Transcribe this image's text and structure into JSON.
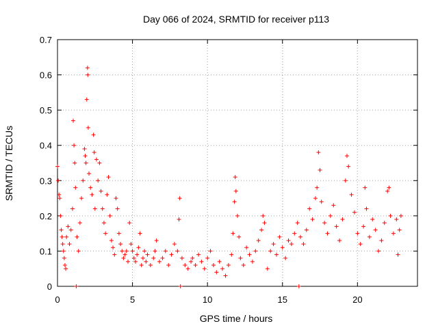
{
  "chart_data": {
    "type": "scatter",
    "title": "Day 066 of 2024, SRMTID for receiver p113",
    "xlabel": "GPS time / hours",
    "ylabel": "SRMTID / TECUs",
    "xlim": [
      0,
      24
    ],
    "ylim": [
      0,
      0.7
    ],
    "x_ticks": [
      0,
      5,
      10,
      15,
      20
    ],
    "y_ticks": [
      0,
      0.1,
      0.2,
      0.3,
      0.4,
      0.5,
      0.6,
      0.7
    ],
    "x_tick_labels": [
      "0",
      "5",
      "10",
      "15",
      "20"
    ],
    "y_tick_labels": [
      "0",
      "0.1",
      "0.2",
      "0.3",
      "0.4",
      "0.5",
      "0.6",
      "0.7"
    ],
    "grid": true,
    "marker": "+",
    "color": "#ff0000",
    "series": [
      {
        "name": "p113",
        "points": [
          [
            0.0,
            0.34
          ],
          [
            0.05,
            0.3
          ],
          [
            0.1,
            0.26
          ],
          [
            0.15,
            0.25
          ],
          [
            0.2,
            0.2
          ],
          [
            0.25,
            0.16
          ],
          [
            0.3,
            0.14
          ],
          [
            0.35,
            0.12
          ],
          [
            0.4,
            0.1
          ],
          [
            0.45,
            0.08
          ],
          [
            0.5,
            0.06
          ],
          [
            0.55,
            0.05
          ],
          [
            0.6,
            0.14
          ],
          [
            0.7,
            0.17
          ],
          [
            0.8,
            0.12
          ],
          [
            0.9,
            0.16
          ],
          [
            1.0,
            0.22
          ],
          [
            1.05,
            0.47
          ],
          [
            1.1,
            0.4
          ],
          [
            1.15,
            0.35
          ],
          [
            1.2,
            0.28
          ],
          [
            1.25,
            0.0
          ],
          [
            1.3,
            0.14
          ],
          [
            1.4,
            0.1
          ],
          [
            1.5,
            0.18
          ],
          [
            1.6,
            0.25
          ],
          [
            1.7,
            0.3
          ],
          [
            1.8,
            0.39
          ],
          [
            1.85,
            0.37
          ],
          [
            1.9,
            0.35
          ],
          [
            1.95,
            0.53
          ],
          [
            2.0,
            0.62
          ],
          [
            2.02,
            0.6
          ],
          [
            2.05,
            0.45
          ],
          [
            2.1,
            0.32
          ],
          [
            2.2,
            0.28
          ],
          [
            2.3,
            0.26
          ],
          [
            2.4,
            0.43
          ],
          [
            2.45,
            0.38
          ],
          [
            2.5,
            0.22
          ],
          [
            2.6,
            0.36
          ],
          [
            2.7,
            0.3
          ],
          [
            2.8,
            0.35
          ],
          [
            2.9,
            0.27
          ],
          [
            3.0,
            0.22
          ],
          [
            3.1,
            0.18
          ],
          [
            3.2,
            0.15
          ],
          [
            3.3,
            0.26
          ],
          [
            3.4,
            0.31
          ],
          [
            3.5,
            0.2
          ],
          [
            3.6,
            0.13
          ],
          [
            3.7,
            0.11
          ],
          [
            3.8,
            0.09
          ],
          [
            3.9,
            0.25
          ],
          [
            4.0,
            0.22
          ],
          [
            4.1,
            0.15
          ],
          [
            4.2,
            0.12
          ],
          [
            4.3,
            0.1
          ],
          [
            4.4,
            0.08
          ],
          [
            4.5,
            0.09
          ],
          [
            4.6,
            0.1
          ],
          [
            4.7,
            0.07
          ],
          [
            4.8,
            0.18
          ],
          [
            4.9,
            0.12
          ],
          [
            5.0,
            0.1
          ],
          [
            5.1,
            0.08
          ],
          [
            5.2,
            0.07
          ],
          [
            5.3,
            0.09
          ],
          [
            5.4,
            0.11
          ],
          [
            5.5,
            0.15
          ],
          [
            5.6,
            0.06
          ],
          [
            5.7,
            0.08
          ],
          [
            5.8,
            0.1
          ],
          [
            5.9,
            0.07
          ],
          [
            6.0,
            0.09
          ],
          [
            6.2,
            0.06
          ],
          [
            6.4,
            0.08
          ],
          [
            6.5,
            0.1
          ],
          [
            6.6,
            0.13
          ],
          [
            6.8,
            0.07
          ],
          [
            7.0,
            0.08
          ],
          [
            7.2,
            0.1
          ],
          [
            7.4,
            0.06
          ],
          [
            7.6,
            0.09
          ],
          [
            7.8,
            0.12
          ],
          [
            8.0,
            0.1
          ],
          [
            8.1,
            0.19
          ],
          [
            8.15,
            0.25
          ],
          [
            8.2,
            0.0
          ],
          [
            8.3,
            0.08
          ],
          [
            8.5,
            0.06
          ],
          [
            8.7,
            0.05
          ],
          [
            8.9,
            0.07
          ],
          [
            9.0,
            0.08
          ],
          [
            9.2,
            0.06
          ],
          [
            9.4,
            0.09
          ],
          [
            9.6,
            0.07
          ],
          [
            9.8,
            0.05
          ],
          [
            10.0,
            0.08
          ],
          [
            10.2,
            0.1
          ],
          [
            10.4,
            0.06
          ],
          [
            10.6,
            0.04
          ],
          [
            10.8,
            0.07
          ],
          [
            11.0,
            0.05
          ],
          [
            11.2,
            0.03
          ],
          [
            11.4,
            0.06
          ],
          [
            11.6,
            0.09
          ],
          [
            11.7,
            0.15
          ],
          [
            11.8,
            0.24
          ],
          [
            11.85,
            0.31
          ],
          [
            11.9,
            0.27
          ],
          [
            12.0,
            0.2
          ],
          [
            12.1,
            0.14
          ],
          [
            12.2,
            0.08
          ],
          [
            12.4,
            0.06
          ],
          [
            12.6,
            0.11
          ],
          [
            12.8,
            0.09
          ],
          [
            13.0,
            0.07
          ],
          [
            13.2,
            0.1
          ],
          [
            13.4,
            0.13
          ],
          [
            13.6,
            0.16
          ],
          [
            13.7,
            0.2
          ],
          [
            13.8,
            0.18
          ],
          [
            14.0,
            0.05
          ],
          [
            14.2,
            0.1
          ],
          [
            14.4,
            0.12
          ],
          [
            14.6,
            0.09
          ],
          [
            14.8,
            0.14
          ],
          [
            15.0,
            0.11
          ],
          [
            15.2,
            0.08
          ],
          [
            15.4,
            0.13
          ],
          [
            15.6,
            0.12
          ],
          [
            15.8,
            0.15
          ],
          [
            16.0,
            0.18
          ],
          [
            16.1,
            0.0
          ],
          [
            16.2,
            0.14
          ],
          [
            16.4,
            0.12
          ],
          [
            16.6,
            0.16
          ],
          [
            16.8,
            0.22
          ],
          [
            17.0,
            0.19
          ],
          [
            17.2,
            0.25
          ],
          [
            17.3,
            0.28
          ],
          [
            17.4,
            0.38
          ],
          [
            17.5,
            0.33
          ],
          [
            17.6,
            0.24
          ],
          [
            17.8,
            0.18
          ],
          [
            18.0,
            0.15
          ],
          [
            18.2,
            0.2
          ],
          [
            18.4,
            0.23
          ],
          [
            18.6,
            0.17
          ],
          [
            18.8,
            0.13
          ],
          [
            19.0,
            0.19
          ],
          [
            19.2,
            0.3
          ],
          [
            19.3,
            0.37
          ],
          [
            19.4,
            0.34
          ],
          [
            19.6,
            0.26
          ],
          [
            19.8,
            0.21
          ],
          [
            20.0,
            0.15
          ],
          [
            20.2,
            0.12
          ],
          [
            20.4,
            0.17
          ],
          [
            20.5,
            0.28
          ],
          [
            20.6,
            0.22
          ],
          [
            20.8,
            0.14
          ],
          [
            21.0,
            0.19
          ],
          [
            21.2,
            0.16
          ],
          [
            21.4,
            0.1
          ],
          [
            21.6,
            0.13
          ],
          [
            21.8,
            0.18
          ],
          [
            22.0,
            0.27
          ],
          [
            22.1,
            0.28
          ],
          [
            22.2,
            0.2
          ],
          [
            22.4,
            0.15
          ],
          [
            22.6,
            0.19
          ],
          [
            22.7,
            0.09
          ],
          [
            22.8,
            0.16
          ],
          [
            22.9,
            0.2
          ]
        ]
      }
    ]
  }
}
